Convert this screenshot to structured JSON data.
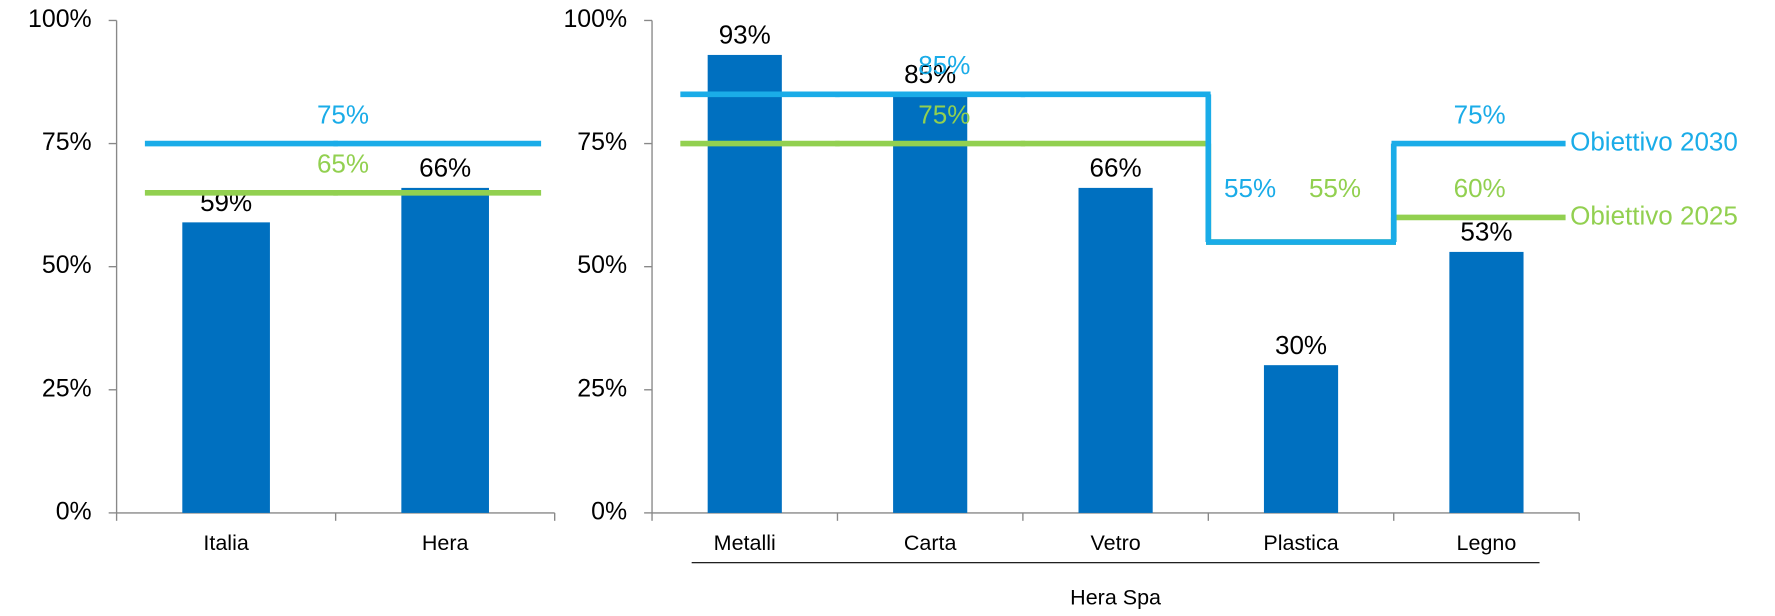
{
  "chart_data": [
    {
      "type": "bar",
      "categories": [
        "Italia",
        "Hera"
      ],
      "values": [
        59,
        66
      ],
      "value_labels": [
        "59%",
        "66%"
      ],
      "color": "#0070c0",
      "ylim": [
        0,
        100
      ],
      "yticks": [
        {
          "value": 0,
          "label": "0%"
        },
        {
          "value": 25,
          "label": "25%"
        },
        {
          "value": 50,
          "label": "50%"
        },
        {
          "value": 75,
          "label": "75%"
        },
        {
          "value": 100,
          "label": "100%"
        }
      ],
      "targets": [
        {
          "color": "#92d050",
          "values": [
            65,
            65
          ],
          "value_labels": [
            "65%",
            null
          ]
        },
        {
          "color": "#1aace8",
          "values": [
            75,
            75
          ],
          "value_labels": [
            "75%",
            null
          ]
        }
      ]
    },
    {
      "type": "bar",
      "categories": [
        "Metalli",
        "Carta",
        "Vetro",
        "Plastica",
        "Legno"
      ],
      "values": [
        93,
        85,
        66,
        30,
        53
      ],
      "value_labels": [
        "93%",
        "85%",
        "66%",
        "30%",
        "53%"
      ],
      "color": "#0070c0",
      "group_label": "Hera Spa",
      "ylim": [
        0,
        100
      ],
      "yticks": [
        {
          "value": 0,
          "label": "0%"
        },
        {
          "value": 25,
          "label": "25%"
        },
        {
          "value": 50,
          "label": "50%"
        },
        {
          "value": 75,
          "label": "75%"
        },
        {
          "value": 100,
          "label": "100%"
        }
      ],
      "targets": [
        {
          "name": "Obiettivo 2025",
          "color": "#92d050",
          "values": [
            75,
            75,
            75,
            55,
            60
          ],
          "value_labels": [
            "75%",
            null,
            null,
            "55%",
            "60%"
          ]
        },
        {
          "name": "Obiettivo 2030",
          "color": "#1aace8",
          "values": [
            85,
            85,
            85,
            55,
            75
          ],
          "value_labels": [
            "85%",
            null,
            null,
            "55%",
            "75%"
          ]
        }
      ]
    }
  ]
}
